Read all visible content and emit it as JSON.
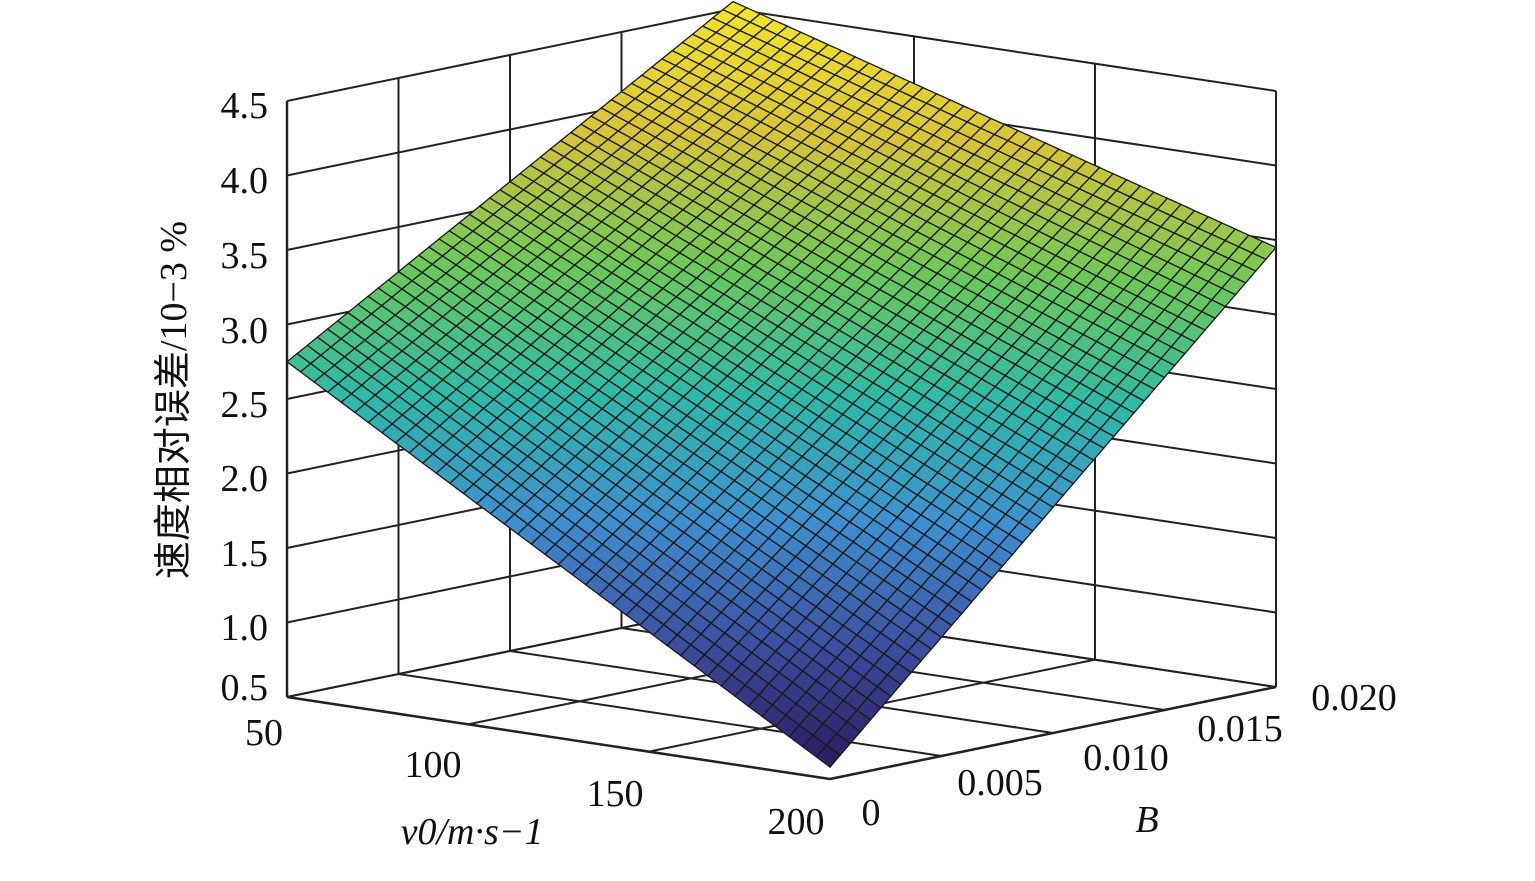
{
  "chart_data": {
    "type": "surface",
    "xlabel": "v0/m·s−1",
    "ylabel": "B",
    "zlabel": "速度相对误差/10−3 %",
    "x_ticks": [
      "50",
      "100",
      "150",
      "200"
    ],
    "y_ticks": [
      "0",
      "0.005",
      "0.010",
      "0.015",
      "0.020"
    ],
    "z_ticks": [
      "0.5",
      "1.0",
      "1.5",
      "2.0",
      "2.5",
      "3.0",
      "3.5",
      "4.0",
      "4.5"
    ],
    "xlim": [
      50,
      200
    ],
    "ylim": [
      0,
      0.02
    ],
    "zlim": [
      0.5,
      4.5
    ],
    "grid": true,
    "colormap": [
      "#2a1a5e",
      "#3b4fa0",
      "#3f8fd0",
      "#2fb9a8",
      "#6cc85a",
      "#d6c33a",
      "#f5e62a"
    ],
    "corner_values": [
      {
        "x": 50,
        "y": 0,
        "z": 2.75
      },
      {
        "x": 200,
        "y": 0,
        "z": 0.58
      },
      {
        "x": 50,
        "y": 0.02,
        "z": 4.55
      },
      {
        "x": 200,
        "y": 0.02,
        "z": 3.45
      }
    ]
  }
}
